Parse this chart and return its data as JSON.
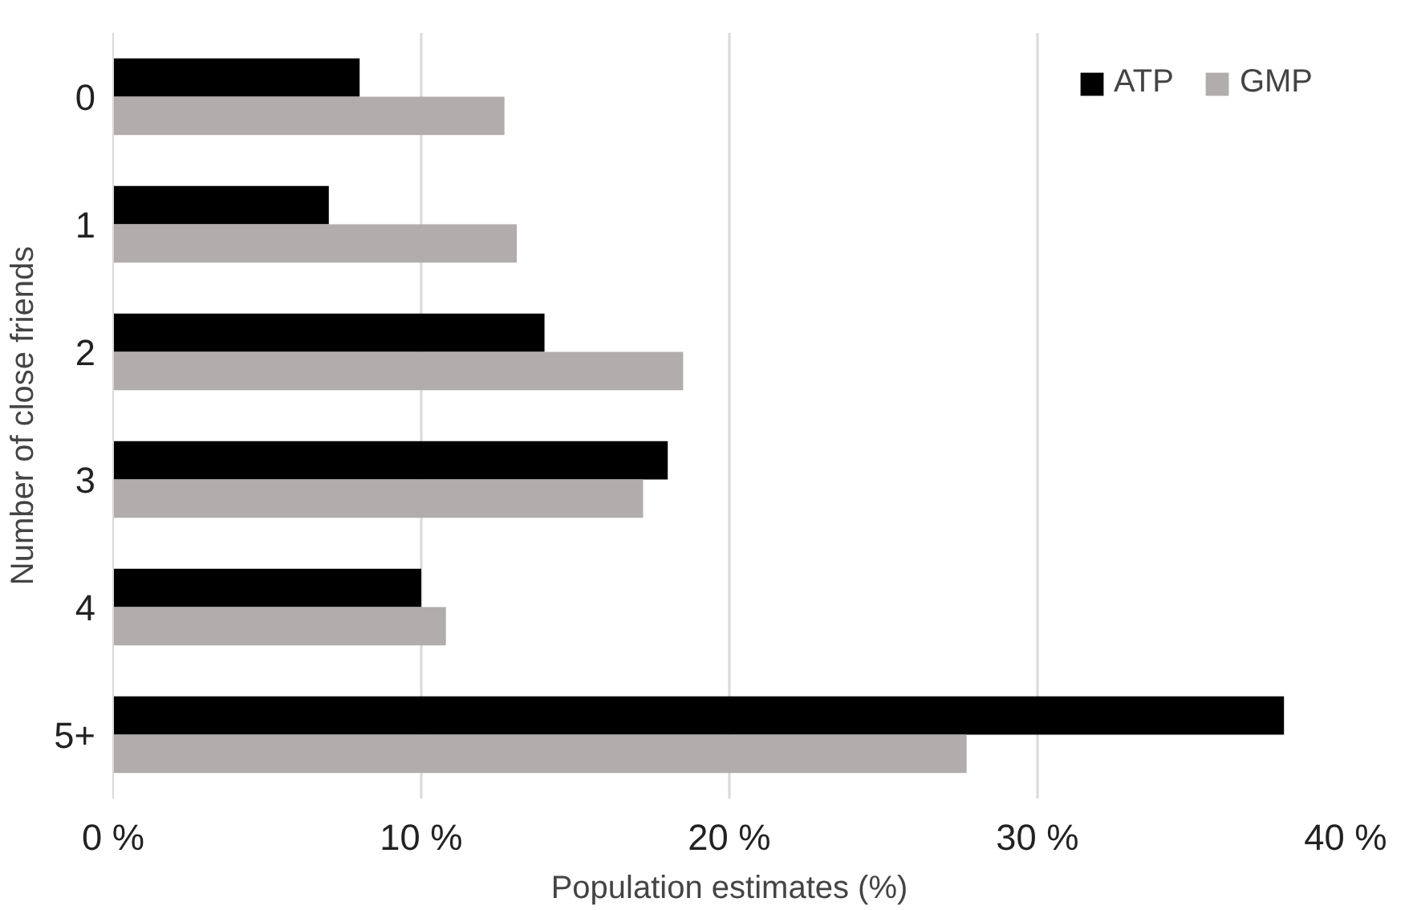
{
  "chart_data": {
    "type": "bar",
    "orientation": "horizontal",
    "xlabel": "Population estimates (%)",
    "ylabel": "Number of close friends",
    "categories": [
      "0",
      "1",
      "2",
      "3",
      "4",
      "5+"
    ],
    "series": [
      {
        "name": "ATP",
        "color": "#000000",
        "values": [
          8.0,
          7.0,
          14.0,
          18.0,
          10.0,
          38.0
        ]
      },
      {
        "name": "GMP",
        "color": "#b0adac",
        "values": [
          12.7,
          13.1,
          18.5,
          17.2,
          10.8,
          27.7
        ]
      }
    ],
    "xlim": [
      0,
      40
    ],
    "xticks": [
      {
        "value": 0,
        "label": "0 %"
      },
      {
        "value": 10,
        "label": "10 %"
      },
      {
        "value": 20,
        "label": "20 %"
      },
      {
        "value": 30,
        "label": "30 %"
      },
      {
        "value": 40,
        "label": "40 %"
      }
    ],
    "grid": "x",
    "legend": "top right"
  }
}
